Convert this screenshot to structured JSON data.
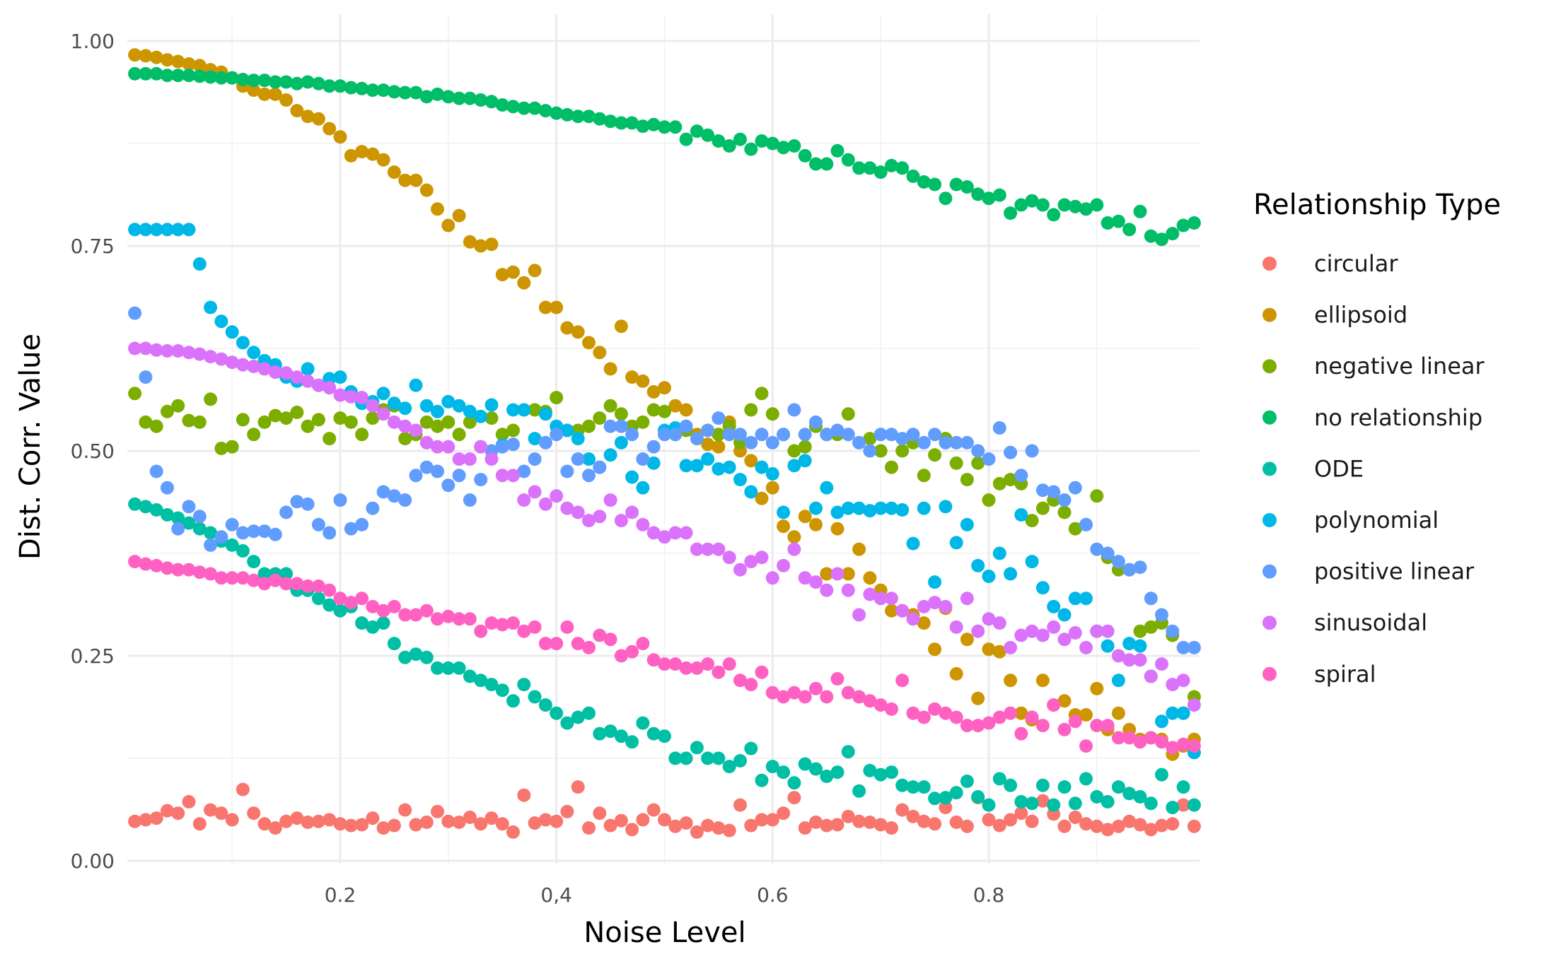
{
  "chart_data": {
    "type": "scatter",
    "xlabel": "Noise Level",
    "ylabel": "Dist. Corr. Value",
    "xlim": [
      0.0,
      0.99
    ],
    "ylim": [
      0.0,
      1.02
    ],
    "x_ticks": [
      0.2,
      0.4,
      0.6,
      0.8
    ],
    "x_tick_labels": [
      "0.2",
      "0,4",
      "0.6",
      "0.8"
    ],
    "y_ticks": [
      0.0,
      0.25,
      0.5,
      0.75,
      1.0
    ],
    "y_tick_labels": [
      "0.00",
      "0.25",
      "0.50",
      "0.75",
      "1.00"
    ],
    "grid": true,
    "legend": {
      "title": "Relationship Type",
      "position": "right"
    },
    "x": [
      0.01,
      0.02,
      0.03,
      0.04,
      0.05,
      0.06,
      0.07,
      0.08,
      0.09,
      0.1,
      0.11,
      0.12,
      0.13,
      0.14,
      0.15,
      0.16,
      0.17,
      0.18,
      0.19,
      0.2,
      0.21,
      0.22,
      0.23,
      0.24,
      0.25,
      0.26,
      0.27,
      0.28,
      0.29,
      0.3,
      0.31,
      0.32,
      0.33,
      0.34,
      0.35,
      0.36,
      0.37,
      0.38,
      0.39,
      0.4,
      0.41,
      0.42,
      0.43,
      0.44,
      0.45,
      0.46,
      0.47,
      0.48,
      0.49,
      0.5,
      0.51,
      0.52,
      0.53,
      0.54,
      0.55,
      0.56,
      0.57,
      0.58,
      0.59,
      0.6,
      0.61,
      0.62,
      0.63,
      0.64,
      0.65,
      0.66,
      0.67,
      0.68,
      0.69,
      0.7,
      0.71,
      0.72,
      0.73,
      0.74,
      0.75,
      0.76,
      0.77,
      0.78,
      0.79,
      0.8,
      0.81,
      0.82,
      0.83,
      0.84,
      0.85,
      0.86,
      0.87,
      0.88,
      0.89,
      0.9,
      0.91,
      0.92,
      0.93,
      0.94,
      0.95,
      0.96,
      0.97,
      0.98,
      0.99
    ],
    "series": [
      {
        "name": "circular",
        "color": "#F8766D",
        "values": [
          0.048,
          0.05,
          0.052,
          0.061,
          0.058,
          0.072,
          0.045,
          0.062,
          0.058,
          0.05,
          0.087,
          0.058,
          0.045,
          0.04,
          0.048,
          0.052,
          0.047,
          0.048,
          0.05,
          0.045,
          0.043,
          0.044,
          0.052,
          0.04,
          0.043,
          0.062,
          0.044,
          0.047,
          0.06,
          0.048,
          0.047,
          0.053,
          0.045,
          0.052,
          0.045,
          0.035,
          0.08,
          0.046,
          0.05,
          0.048,
          0.06,
          0.09,
          0.04,
          0.058,
          0.043,
          0.049,
          0.038,
          0.05,
          0.062,
          0.05,
          0.042,
          0.046,
          0.035,
          0.043,
          0.04,
          0.037,
          0.068,
          0.043,
          0.05,
          0.05,
          0.058,
          0.077,
          0.04,
          0.047,
          0.043,
          0.044,
          0.054,
          0.048,
          0.047,
          0.044,
          0.04,
          0.062,
          0.054,
          0.048,
          0.045,
          0.065,
          0.047,
          0.042,
          0.077,
          0.05,
          0.043,
          0.05,
          0.058,
          0.048,
          0.073,
          0.057,
          0.042,
          0.053,
          0.045,
          0.042,
          0.038,
          0.042,
          0.048,
          0.044,
          0.038,
          0.043,
          0.045,
          0.068,
          0.042
        ]
      },
      {
        "name": "ellipsoid",
        "color": "#CD9600",
        "values": [
          0.983,
          0.982,
          0.98,
          0.977,
          0.975,
          0.972,
          0.97,
          0.965,
          0.962,
          0.955,
          0.945,
          0.94,
          0.935,
          0.935,
          0.928,
          0.915,
          0.908,
          0.905,
          0.893,
          0.883,
          0.86,
          0.865,
          0.862,
          0.855,
          0.84,
          0.83,
          0.83,
          0.818,
          0.795,
          0.775,
          0.787,
          0.755,
          0.75,
          0.752,
          0.715,
          0.718,
          0.705,
          0.72,
          0.675,
          0.675,
          0.65,
          0.645,
          0.632,
          0.62,
          0.6,
          0.652,
          0.59,
          0.585,
          0.572,
          0.577,
          0.555,
          0.55,
          0.52,
          0.508,
          0.505,
          0.535,
          0.5,
          0.488,
          0.442,
          0.455,
          0.408,
          0.395,
          0.42,
          0.41,
          0.35,
          0.405,
          0.35,
          0.38,
          0.345,
          0.33,
          0.305,
          0.305,
          0.3,
          0.29,
          0.258,
          0.308,
          0.228,
          0.27,
          0.198,
          0.258,
          0.255,
          0.22,
          0.18,
          0.172,
          0.22,
          0.19,
          0.195,
          0.178,
          0.178,
          0.21,
          0.16,
          0.18,
          0.16,
          0.148,
          0.15,
          0.148,
          0.13,
          0.14,
          0.148
        ]
      },
      {
        "name": "negative linear",
        "color": "#7CAE00",
        "values": [
          0.57,
          0.535,
          0.53,
          0.548,
          0.555,
          0.537,
          0.535,
          0.563,
          0.503,
          0.505,
          0.538,
          0.52,
          0.535,
          0.543,
          0.54,
          0.547,
          0.53,
          0.538,
          0.515,
          0.54,
          0.535,
          0.52,
          0.54,
          0.55,
          0.555,
          0.515,
          0.52,
          0.535,
          0.53,
          0.535,
          0.52,
          0.535,
          0.505,
          0.54,
          0.52,
          0.525,
          0.55,
          0.55,
          0.548,
          0.565,
          0.525,
          0.525,
          0.53,
          0.54,
          0.555,
          0.545,
          0.53,
          0.535,
          0.55,
          0.548,
          0.52,
          0.525,
          0.515,
          0.525,
          0.52,
          0.53,
          0.51,
          0.55,
          0.57,
          0.545,
          0.52,
          0.5,
          0.505,
          0.53,
          0.52,
          0.52,
          0.545,
          0.51,
          0.515,
          0.5,
          0.48,
          0.5,
          0.51,
          0.47,
          0.495,
          0.515,
          0.485,
          0.465,
          0.485,
          0.44,
          0.46,
          0.465,
          0.46,
          0.415,
          0.43,
          0.44,
          0.425,
          0.405,
          0.41,
          0.445,
          0.37,
          0.355,
          0.355,
          0.28,
          0.285,
          0.29,
          0.275,
          0.18,
          0.2
        ]
      },
      {
        "name": "no relationship",
        "color": "#00BE67",
        "values": [
          0.96,
          0.96,
          0.96,
          0.958,
          0.958,
          0.958,
          0.957,
          0.956,
          0.955,
          0.955,
          0.953,
          0.952,
          0.952,
          0.95,
          0.95,
          0.948,
          0.95,
          0.948,
          0.945,
          0.945,
          0.943,
          0.942,
          0.94,
          0.94,
          0.938,
          0.937,
          0.937,
          0.932,
          0.935,
          0.932,
          0.93,
          0.93,
          0.928,
          0.926,
          0.922,
          0.92,
          0.918,
          0.918,
          0.915,
          0.912,
          0.91,
          0.908,
          0.908,
          0.905,
          0.902,
          0.9,
          0.9,
          0.896,
          0.898,
          0.895,
          0.895,
          0.88,
          0.89,
          0.885,
          0.878,
          0.872,
          0.88,
          0.868,
          0.878,
          0.875,
          0.87,
          0.872,
          0.86,
          0.85,
          0.85,
          0.866,
          0.855,
          0.845,
          0.845,
          0.84,
          0.848,
          0.845,
          0.835,
          0.828,
          0.825,
          0.808,
          0.825,
          0.822,
          0.813,
          0.808,
          0.812,
          0.79,
          0.8,
          0.805,
          0.8,
          0.788,
          0.8,
          0.798,
          0.795,
          0.8,
          0.778,
          0.78,
          0.77,
          0.792,
          0.762,
          0.758,
          0.765,
          0.775,
          0.778
        ]
      },
      {
        "name": "ODE",
        "color": "#00BFA5",
        "values": [
          0.435,
          0.432,
          0.428,
          0.422,
          0.418,
          0.412,
          0.405,
          0.4,
          0.39,
          0.385,
          0.378,
          0.365,
          0.35,
          0.35,
          0.35,
          0.33,
          0.33,
          0.32,
          0.312,
          0.305,
          0.31,
          0.29,
          0.285,
          0.29,
          0.265,
          0.248,
          0.252,
          0.248,
          0.235,
          0.235,
          0.235,
          0.225,
          0.22,
          0.215,
          0.208,
          0.195,
          0.215,
          0.2,
          0.19,
          0.18,
          0.168,
          0.175,
          0.18,
          0.155,
          0.158,
          0.152,
          0.145,
          0.168,
          0.155,
          0.152,
          0.125,
          0.125,
          0.138,
          0.125,
          0.125,
          0.115,
          0.122,
          0.137,
          0.098,
          0.115,
          0.108,
          0.095,
          0.118,
          0.112,
          0.103,
          0.108,
          0.133,
          0.085,
          0.11,
          0.105,
          0.108,
          0.092,
          0.09,
          0.09,
          0.076,
          0.077,
          0.083,
          0.097,
          0.078,
          0.068,
          0.1,
          0.092,
          0.072,
          0.07,
          0.092,
          0.068,
          0.09,
          0.07,
          0.1,
          0.078,
          0.072,
          0.09,
          0.082,
          0.078,
          0.07,
          0.105,
          0.065,
          0.09,
          0.068
        ]
      },
      {
        "name": "polynomial",
        "color": "#00B8E7",
        "values": [
          0.77,
          0.77,
          0.77,
          0.77,
          0.77,
          0.77,
          0.728,
          0.675,
          0.658,
          0.645,
          0.632,
          0.62,
          0.61,
          0.605,
          0.59,
          0.585,
          0.6,
          0.58,
          0.588,
          0.59,
          0.572,
          0.558,
          0.56,
          0.57,
          0.558,
          0.552,
          0.58,
          0.555,
          0.548,
          0.56,
          0.555,
          0.548,
          0.542,
          0.556,
          0.507,
          0.55,
          0.55,
          0.515,
          0.545,
          0.53,
          0.525,
          0.515,
          0.49,
          0.48,
          0.495,
          0.51,
          0.468,
          0.455,
          0.485,
          0.525,
          0.528,
          0.482,
          0.482,
          0.49,
          0.478,
          0.48,
          0.465,
          0.45,
          0.48,
          0.472,
          0.425,
          0.482,
          0.488,
          0.43,
          0.455,
          0.425,
          0.43,
          0.43,
          0.427,
          0.43,
          0.43,
          0.428,
          0.387,
          0.43,
          0.34,
          0.432,
          0.388,
          0.41,
          0.36,
          0.347,
          0.375,
          0.35,
          0.422,
          0.365,
          0.333,
          0.31,
          0.3,
          0.32,
          0.32,
          0.28,
          0.262,
          0.22,
          0.265,
          0.262,
          0.225,
          0.17,
          0.18,
          0.18,
          0.132
        ]
      },
      {
        "name": "positive linear",
        "color": "#619CFF",
        "values": [
          0.668,
          0.59,
          0.475,
          0.455,
          0.405,
          0.432,
          0.42,
          0.385,
          0.395,
          0.41,
          0.4,
          0.402,
          0.402,
          0.398,
          0.425,
          0.438,
          0.435,
          0.41,
          0.4,
          0.44,
          0.405,
          0.41,
          0.43,
          0.45,
          0.445,
          0.44,
          0.47,
          0.48,
          0.475,
          0.458,
          0.47,
          0.44,
          0.465,
          0.5,
          0.505,
          0.508,
          0.475,
          0.49,
          0.51,
          0.52,
          0.475,
          0.49,
          0.47,
          0.48,
          0.53,
          0.53,
          0.52,
          0.49,
          0.505,
          0.52,
          0.52,
          0.53,
          0.515,
          0.525,
          0.54,
          0.52,
          0.52,
          0.51,
          0.52,
          0.51,
          0.52,
          0.55,
          0.52,
          0.535,
          0.52,
          0.525,
          0.52,
          0.51,
          0.5,
          0.52,
          0.52,
          0.515,
          0.52,
          0.51,
          0.52,
          0.51,
          0.51,
          0.51,
          0.5,
          0.49,
          0.528,
          0.498,
          0.47,
          0.5,
          0.452,
          0.45,
          0.44,
          0.455,
          0.41,
          0.38,
          0.375,
          0.365,
          0.355,
          0.358,
          0.32,
          0.3,
          0.28,
          0.26,
          0.26
        ]
      },
      {
        "name": "sinusoidal",
        "color": "#DB72FB",
        "values": [
          0.625,
          0.625,
          0.623,
          0.622,
          0.622,
          0.62,
          0.618,
          0.615,
          0.612,
          0.608,
          0.605,
          0.603,
          0.6,
          0.596,
          0.595,
          0.59,
          0.585,
          0.58,
          0.577,
          0.568,
          0.566,
          0.565,
          0.555,
          0.545,
          0.535,
          0.53,
          0.525,
          0.51,
          0.505,
          0.505,
          0.49,
          0.49,
          0.505,
          0.49,
          0.47,
          0.47,
          0.44,
          0.45,
          0.435,
          0.445,
          0.43,
          0.425,
          0.415,
          0.42,
          0.44,
          0.415,
          0.425,
          0.41,
          0.4,
          0.395,
          0.4,
          0.4,
          0.38,
          0.38,
          0.38,
          0.37,
          0.355,
          0.365,
          0.37,
          0.345,
          0.36,
          0.38,
          0.345,
          0.34,
          0.33,
          0.35,
          0.33,
          0.3,
          0.325,
          0.32,
          0.32,
          0.305,
          0.295,
          0.31,
          0.315,
          0.31,
          0.285,
          0.32,
          0.28,
          0.295,
          0.29,
          0.26,
          0.275,
          0.28,
          0.275,
          0.285,
          0.27,
          0.278,
          0.26,
          0.28,
          0.28,
          0.25,
          0.245,
          0.245,
          0.225,
          0.24,
          0.215,
          0.22,
          0.19
        ]
      },
      {
        "name": "spiral",
        "color": "#FF61C3",
        "values": [
          0.365,
          0.362,
          0.36,
          0.357,
          0.355,
          0.355,
          0.352,
          0.35,
          0.345,
          0.345,
          0.345,
          0.342,
          0.338,
          0.342,
          0.338,
          0.338,
          0.335,
          0.335,
          0.33,
          0.32,
          0.315,
          0.32,
          0.31,
          0.305,
          0.31,
          0.3,
          0.3,
          0.305,
          0.295,
          0.298,
          0.295,
          0.295,
          0.28,
          0.29,
          0.288,
          0.29,
          0.28,
          0.285,
          0.265,
          0.265,
          0.285,
          0.265,
          0.26,
          0.275,
          0.27,
          0.25,
          0.255,
          0.265,
          0.245,
          0.24,
          0.24,
          0.235,
          0.235,
          0.24,
          0.23,
          0.24,
          0.22,
          0.215,
          0.23,
          0.205,
          0.2,
          0.205,
          0.2,
          0.21,
          0.2,
          0.222,
          0.205,
          0.2,
          0.195,
          0.19,
          0.185,
          0.22,
          0.18,
          0.175,
          0.185,
          0.18,
          0.175,
          0.165,
          0.165,
          0.168,
          0.175,
          0.18,
          0.155,
          0.175,
          0.165,
          0.19,
          0.16,
          0.17,
          0.14,
          0.165,
          0.165,
          0.15,
          0.15,
          0.145,
          0.15,
          0.145,
          0.138,
          0.142,
          0.14
        ]
      }
    ]
  }
}
